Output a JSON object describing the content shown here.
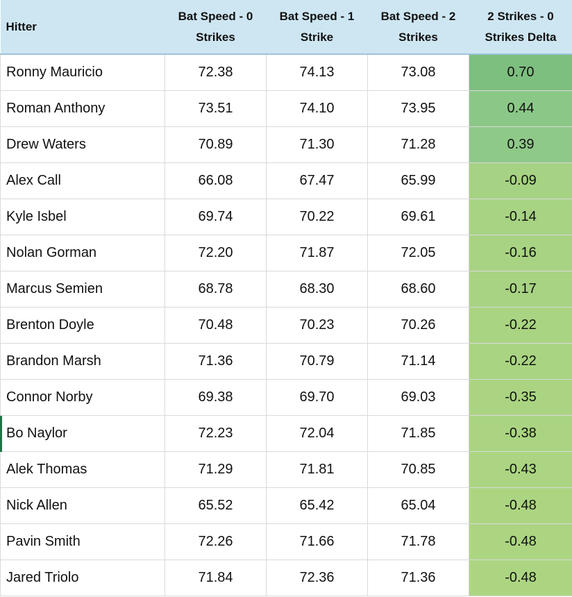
{
  "table": {
    "headers": {
      "hitter": "Hitter",
      "bs0": "Bat Speed - 0 Strikes",
      "bs1": "Bat Speed - 1 Strike",
      "bs2": "Bat Speed - 2 Strikes",
      "delta": "2 Strikes - 0 Strikes Delta"
    },
    "rows": [
      {
        "hitter": "Ronny Mauricio",
        "bs0": "72.38",
        "bs1": "74.13",
        "bs2": "73.08",
        "delta": "0.70",
        "delta_color": "#7dbf7f"
      },
      {
        "hitter": "Roman Anthony",
        "bs0": "73.51",
        "bs1": "74.10",
        "bs2": "73.95",
        "delta": "0.44",
        "delta_color": "#8bc887"
      },
      {
        "hitter": "Drew Waters",
        "bs0": "70.89",
        "bs1": "71.30",
        "bs2": "71.28",
        "delta": "0.39",
        "delta_color": "#8ec988"
      },
      {
        "hitter": "Alex Call",
        "bs0": "66.08",
        "bs1": "67.47",
        "bs2": "65.99",
        "delta": "-0.09",
        "delta_color": "#a6d283"
      },
      {
        "hitter": "Kyle Isbel",
        "bs0": "69.74",
        "bs1": "70.22",
        "bs2": "69.61",
        "delta": "-0.14",
        "delta_color": "#a7d383"
      },
      {
        "hitter": "Nolan Gorman",
        "bs0": "72.20",
        "bs1": "71.87",
        "bs2": "72.05",
        "delta": "-0.16",
        "delta_color": "#a8d383"
      },
      {
        "hitter": "Marcus Semien",
        "bs0": "68.78",
        "bs1": "68.30",
        "bs2": "68.60",
        "delta": "-0.17",
        "delta_color": "#a8d383"
      },
      {
        "hitter": "Brenton Doyle",
        "bs0": "70.48",
        "bs1": "70.23",
        "bs2": "70.26",
        "delta": "-0.22",
        "delta_color": "#a9d482"
      },
      {
        "hitter": "Brandon Marsh",
        "bs0": "71.36",
        "bs1": "70.79",
        "bs2": "71.14",
        "delta": "-0.22",
        "delta_color": "#a9d482"
      },
      {
        "hitter": "Connor Norby",
        "bs0": "69.38",
        "bs1": "69.70",
        "bs2": "69.03",
        "delta": "-0.35",
        "delta_color": "#aad482"
      },
      {
        "hitter": "Bo Naylor",
        "bs0": "72.23",
        "bs1": "72.04",
        "bs2": "71.85",
        "delta": "-0.38",
        "delta_color": "#aad482"
      },
      {
        "hitter": "Alek Thomas",
        "bs0": "71.29",
        "bs1": "71.81",
        "bs2": "70.85",
        "delta": "-0.43",
        "delta_color": "#abd582"
      },
      {
        "hitter": "Nick Allen",
        "bs0": "65.52",
        "bs1": "65.42",
        "bs2": "65.04",
        "delta": "-0.48",
        "delta_color": "#acd582"
      },
      {
        "hitter": "Pavin Smith",
        "bs0": "72.26",
        "bs1": "71.66",
        "bs2": "71.78",
        "delta": "-0.48",
        "delta_color": "#acd582"
      },
      {
        "hitter": "Jared Triolo",
        "bs0": "71.84",
        "bs1": "72.36",
        "bs2": "71.36",
        "delta": "-0.48",
        "delta_color": "#acd582"
      }
    ]
  },
  "colors": {
    "header_bg": "#cde6f2",
    "grid_line": "#d9d9d9",
    "selection_marker": "#217346"
  }
}
